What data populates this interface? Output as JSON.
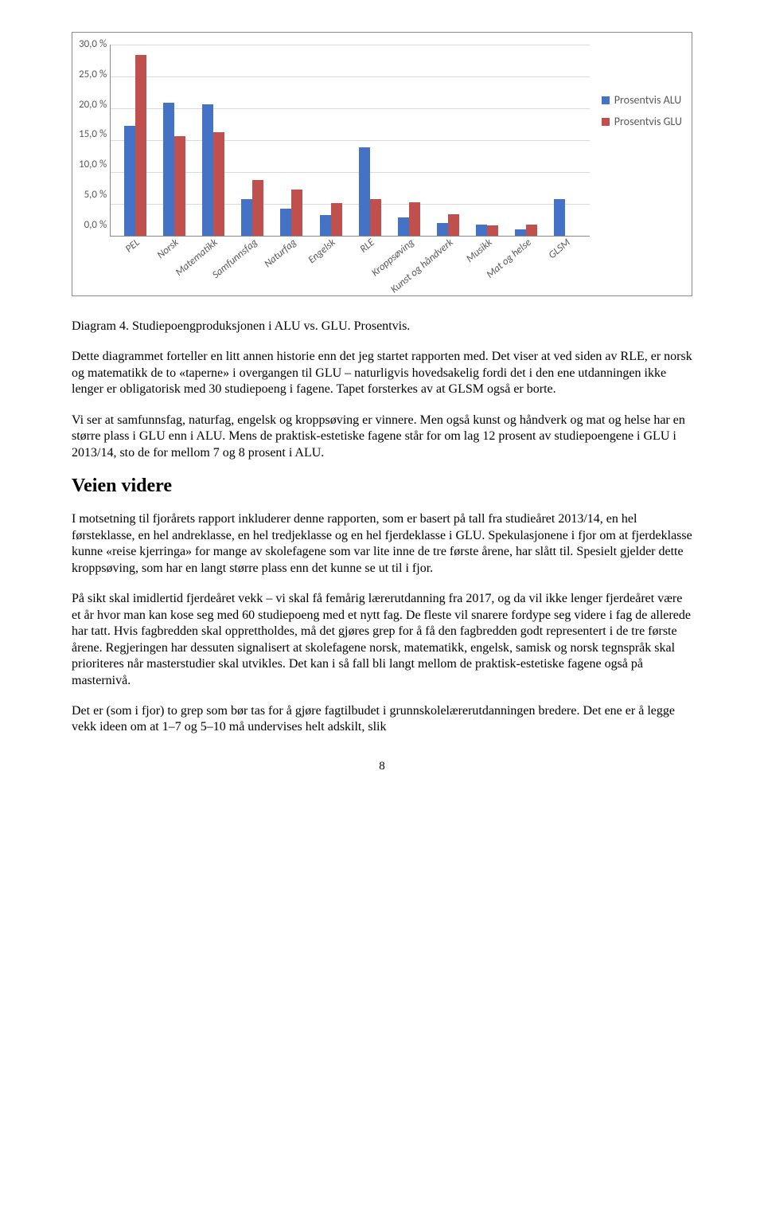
{
  "chart": {
    "type": "bar",
    "y_ticks": [
      "30,0 %",
      "25,0 %",
      "20,0 %",
      "15,0 %",
      "10,0 %",
      "5,0 %",
      "0,0 %"
    ],
    "y_max": 30,
    "categories": [
      "PEL",
      "Norsk",
      "Matematikk",
      "Samfunnsfag",
      "Naturfag",
      "Engelsk",
      "RLE",
      "Kroppsøving",
      "Kunst og håndverk",
      "Musikk",
      "Mat og helse",
      "GLSM"
    ],
    "series": [
      {
        "name": "Prosentvis ALU",
        "color": "#4472c4",
        "values": [
          17.3,
          20.9,
          20.6,
          5.8,
          4.2,
          3.3,
          13.9,
          2.9,
          2.0,
          1.8,
          1.0,
          5.7
        ]
      },
      {
        "name": "Prosentvis GLU",
        "color": "#c0504d",
        "values": [
          28.4,
          15.6,
          16.2,
          8.8,
          7.2,
          5.1,
          5.7,
          5.3,
          3.4,
          1.6,
          1.7,
          0.0
        ]
      }
    ],
    "grid_color": "#d9d9d9",
    "axis_color": "#888888",
    "text_color": "#595959",
    "label_fontsize": 13
  },
  "caption": "Diagram 4. Studiepoengproduksjonen i ALU vs. GLU. Prosentvis.",
  "p1": "Dette diagrammet forteller en litt annen historie enn det jeg startet rapporten med. Det viser at ved siden av RLE, er norsk og matematikk de to «taperne» i overgangen til GLU – naturligvis hovedsakelig fordi det i den ene utdanningen ikke lenger er obligatorisk med 30 studiepoeng i fagene. Tapet forsterkes av at GLSM også er borte.",
  "p2": "Vi ser at samfunnsfag, naturfag, engelsk og kroppsøving er vinnere. Men også kunst og håndverk og mat og helse har en større plass i GLU enn i ALU. Mens de praktisk-estetiske fagene står for om lag 12 prosent av studiepoengene i GLU i 2013/14, sto de for mellom 7 og 8 prosent i ALU.",
  "h2": "Veien videre",
  "p3": "I motsetning til fjorårets rapport inkluderer denne rapporten, som er basert på tall fra studieåret 2013/14, en hel førsteklasse, en hel andreklasse, en hel tredjeklasse og en hel fjerdeklasse i GLU. Spekulasjonene i fjor om at fjerdeklasse kunne «reise kjerringa» for mange av skolefagene som var lite inne de tre første årene, har slått til. Spesielt gjelder dette kroppsøving, som har en langt større plass enn det kunne se ut til i fjor.",
  "p4": "På sikt skal imidlertid fjerdeåret vekk – vi skal få femårig lærerutdanning fra 2017, og da vil ikke lenger fjerdeåret være et år hvor man kan kose seg med 60 studiepoeng med et nytt fag. De fleste vil snarere fordype seg videre i fag de allerede har tatt. Hvis fagbredden skal opprettholdes, må det gjøres grep for å få den fagbredden godt representert i de tre første årene. Regjeringen har dessuten signalisert at skolefagene norsk, matematikk, engelsk, samisk og norsk tegnspråk skal prioriteres når masterstudier skal utvikles. Det kan i så fall bli langt mellom de praktisk-estetiske fagene også på masternivå.",
  "p5": "Det er (som i fjor) to grep som bør tas for å gjøre fagtilbudet i grunnskolelærerutdanningen bredere. Det ene er å legge vekk ideen om at 1–7 og 5–10 må undervises helt adskilt, slik",
  "page_number": "8"
}
